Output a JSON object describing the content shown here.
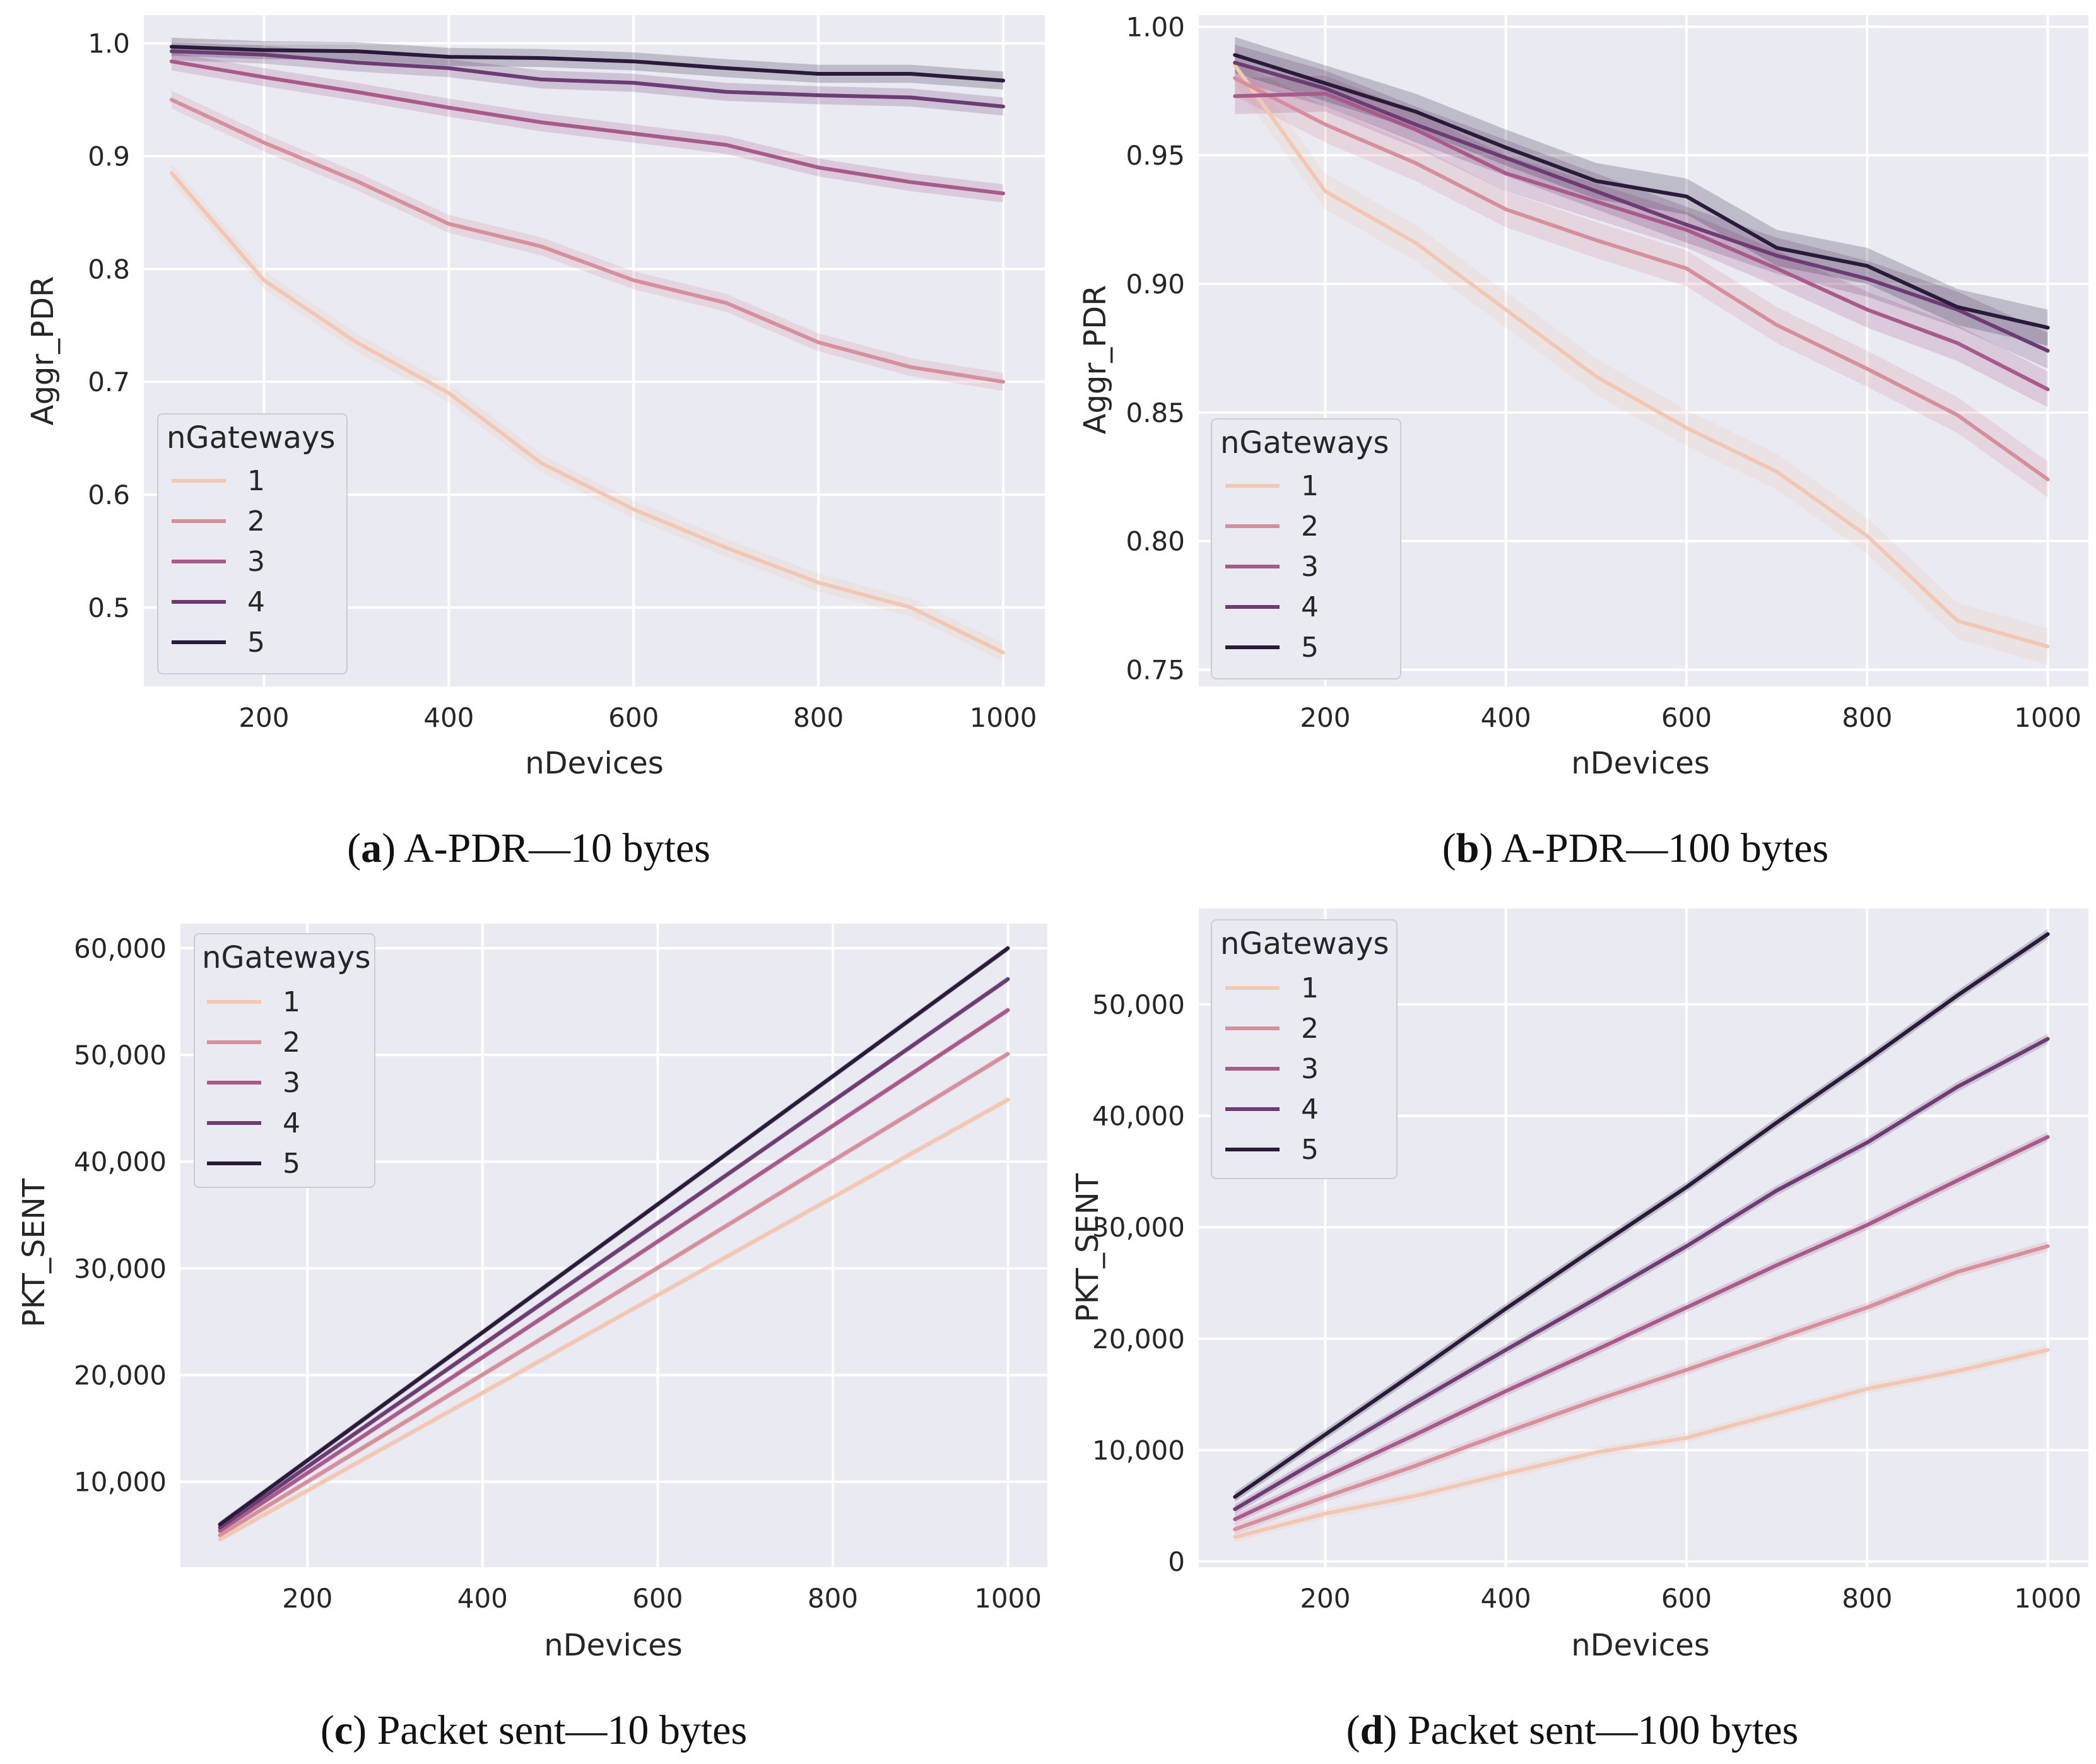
{
  "palette": [
    "#f2c7b3",
    "#d58f9d",
    "#a85b8a",
    "#6c3c72",
    "#2a1b3a"
  ],
  "chart_data": [
    {
      "type": "line",
      "caption": {
        "letter": "a",
        "text": "A-PDR—10 bytes"
      },
      "xlabel": "nDevices",
      "ylabel": "Aggr_PDR",
      "xlim": [
        70,
        1045
      ],
      "ylim": [
        0.43,
        1.025
      ],
      "xticks": [
        200,
        400,
        600,
        800,
        1000
      ],
      "xtick_labels": [
        "200",
        "400",
        "600",
        "800",
        "1000"
      ],
      "yticks": [
        0.5,
        0.6,
        0.7,
        0.8,
        0.9,
        1.0
      ],
      "ytick_labels": [
        "0.5",
        "0.6",
        "0.7",
        "0.8",
        "0.9",
        "1.0"
      ],
      "grid": true,
      "legend": {
        "title": "nGateways",
        "position": "lower-left"
      },
      "x": [
        100,
        200,
        300,
        400,
        500,
        600,
        700,
        800,
        900,
        1000
      ],
      "band": 0.008,
      "series": [
        {
          "name": "1",
          "values": [
            0.885,
            0.79,
            0.735,
            0.69,
            0.628,
            0.587,
            0.553,
            0.522,
            0.5,
            0.46
          ]
        },
        {
          "name": "2",
          "values": [
            0.95,
            0.912,
            0.878,
            0.84,
            0.82,
            0.79,
            0.77,
            0.735,
            0.713,
            0.7
          ]
        },
        {
          "name": "3",
          "values": [
            0.984,
            0.97,
            0.957,
            0.943,
            0.93,
            0.92,
            0.91,
            0.89,
            0.877,
            0.867
          ]
        },
        {
          "name": "4",
          "values": [
            0.993,
            0.99,
            0.983,
            0.978,
            0.968,
            0.965,
            0.957,
            0.954,
            0.952,
            0.944
          ]
        },
        {
          "name": "5",
          "values": [
            0.997,
            0.994,
            0.993,
            0.988,
            0.987,
            0.984,
            0.978,
            0.973,
            0.973,
            0.967
          ]
        }
      ]
    },
    {
      "type": "line",
      "caption": {
        "letter": "b",
        "text": "A-PDR—100 bytes"
      },
      "xlabel": "nDevices",
      "ylabel": "Aggr_PDR",
      "xlim": [
        60,
        1045
      ],
      "ylim": [
        0.7435,
        1.0045
      ],
      "xticks": [
        200,
        400,
        600,
        800,
        1000
      ],
      "xtick_labels": [
        "200",
        "400",
        "600",
        "800",
        "1000"
      ],
      "yticks": [
        0.75,
        0.8,
        0.85,
        0.9,
        0.95,
        1.0
      ],
      "ytick_labels": [
        "0.75",
        "0.80",
        "0.85",
        "0.90",
        "0.95",
        "1.00"
      ],
      "grid": true,
      "legend": {
        "title": "nGateways",
        "position": "lower-left"
      },
      "x": [
        100,
        200,
        300,
        400,
        500,
        600,
        700,
        800,
        900,
        1000
      ],
      "band": 0.007,
      "series": [
        {
          "name": "1",
          "values": [
            0.985,
            0.936,
            0.916,
            0.89,
            0.864,
            0.844,
            0.827,
            0.802,
            0.769,
            0.759
          ]
        },
        {
          "name": "2",
          "values": [
            0.98,
            0.962,
            0.947,
            0.929,
            0.917,
            0.906,
            0.884,
            0.867,
            0.849,
            0.824
          ]
        },
        {
          "name": "3",
          "values": [
            0.973,
            0.974,
            0.96,
            0.943,
            0.932,
            0.921,
            0.906,
            0.89,
            0.877,
            0.859
          ]
        },
        {
          "name": "4",
          "values": [
            0.986,
            0.976,
            0.962,
            0.949,
            0.936,
            0.923,
            0.911,
            0.902,
            0.89,
            0.874
          ]
        },
        {
          "name": "5",
          "values": [
            0.989,
            0.978,
            0.967,
            0.953,
            0.94,
            0.934,
            0.914,
            0.907,
            0.891,
            0.883
          ]
        }
      ]
    },
    {
      "type": "line",
      "caption": {
        "letter": "c",
        "text": "Packet sent—10 bytes"
      },
      "xlabel": "nDevices",
      "ylabel": "PKT_SENT",
      "xlim": [
        55,
        1045
      ],
      "ylim": [
        2000,
        62300
      ],
      "xticks": [
        200,
        400,
        600,
        800,
        1000
      ],
      "xtick_labels": [
        "200",
        "400",
        "600",
        "800",
        "1000"
      ],
      "yticks": [
        10000,
        20000,
        30000,
        40000,
        50000,
        60000
      ],
      "ytick_labels": [
        "10,000",
        "20,000",
        "30,000",
        "40,000",
        "50,000",
        "60,000"
      ],
      "grid": true,
      "legend": {
        "title": "nGateways",
        "position": "upper-left"
      },
      "x": [
        100,
        1000
      ],
      "band": 300,
      "series": [
        {
          "name": "1",
          "values": [
            4600,
            45800
          ]
        },
        {
          "name": "2",
          "values": [
            5000,
            50100
          ]
        },
        {
          "name": "3",
          "values": [
            5400,
            54200
          ]
        },
        {
          "name": "4",
          "values": [
            5700,
            57100
          ]
        },
        {
          "name": "5",
          "values": [
            6000,
            60000
          ]
        }
      ]
    },
    {
      "type": "line",
      "caption": {
        "letter": "d",
        "text": "Packet sent—100 bytes"
      },
      "xlabel": "nDevices",
      "ylabel": "PKT_SENT",
      "xlim": [
        60,
        1045
      ],
      "ylim": [
        -500,
        58600
      ],
      "xticks": [
        200,
        400,
        600,
        800,
        1000
      ],
      "xtick_labels": [
        "200",
        "400",
        "600",
        "800",
        "1000"
      ],
      "yticks": [
        0,
        10000,
        20000,
        30000,
        40000,
        50000
      ],
      "ytick_labels": [
        "0",
        "10,000",
        "20,000",
        "30,000",
        "40,000",
        "50,000"
      ],
      "grid": true,
      "legend": {
        "title": "nGateways",
        "position": "upper-left"
      },
      "x": [
        100,
        200,
        300,
        400,
        500,
        600,
        700,
        800,
        900,
        1000
      ],
      "band": 450,
      "series": [
        {
          "name": "1",
          "values": [
            2200,
            4300,
            5900,
            7900,
            9800,
            11100,
            13300,
            15500,
            17100,
            19000
          ]
        },
        {
          "name": "2",
          "values": [
            2900,
            5800,
            8600,
            11600,
            14500,
            17200,
            20000,
            22800,
            26000,
            28300
          ]
        },
        {
          "name": "3",
          "values": [
            3800,
            7600,
            11400,
            15300,
            19000,
            22800,
            26600,
            30200,
            34200,
            38100
          ]
        },
        {
          "name": "4",
          "values": [
            4700,
            9500,
            14300,
            19000,
            23600,
            28300,
            33300,
            37600,
            42600,
            46900
          ]
        },
        {
          "name": "5",
          "values": [
            5800,
            11400,
            17000,
            22700,
            28200,
            33600,
            39400,
            45000,
            50800,
            56300
          ]
        }
      ]
    }
  ]
}
